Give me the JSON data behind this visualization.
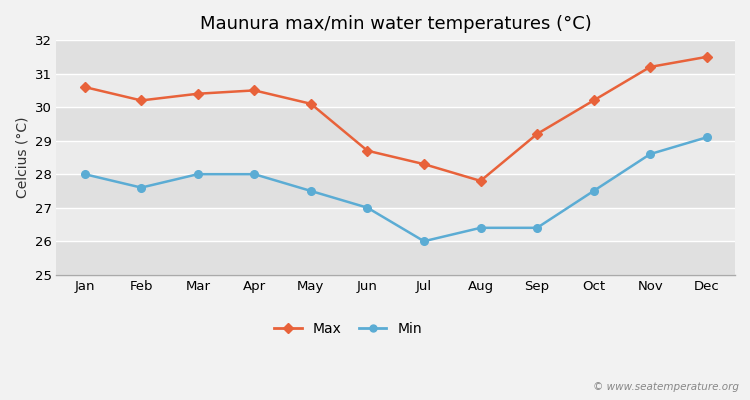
{
  "title": "Maunura max/min water temperatures (°C)",
  "ylabel": "Celcius (°C)",
  "months": [
    "Jan",
    "Feb",
    "Mar",
    "Apr",
    "May",
    "Jun",
    "Jul",
    "Aug",
    "Sep",
    "Oct",
    "Nov",
    "Dec"
  ],
  "max_temps": [
    30.6,
    30.2,
    30.4,
    30.5,
    30.1,
    28.7,
    28.3,
    27.8,
    29.2,
    30.2,
    31.2,
    31.5
  ],
  "min_temps": [
    28.0,
    27.6,
    28.0,
    28.0,
    27.5,
    27.0,
    26.0,
    26.4,
    26.4,
    27.5,
    28.6,
    29.1
  ],
  "max_color": "#e8623a",
  "min_color": "#5bacd4",
  "bg_color": "#f2f2f2",
  "band_light": "#ebebeb",
  "band_dark": "#e0e0e0",
  "ylim": [
    25,
    32
  ],
  "yticks": [
    25,
    26,
    27,
    28,
    29,
    30,
    31,
    32
  ],
  "legend_labels": [
    "Max",
    "Min"
  ],
  "watermark": "© www.seatemperature.org",
  "title_fontsize": 13,
  "label_fontsize": 10,
  "tick_fontsize": 9.5
}
